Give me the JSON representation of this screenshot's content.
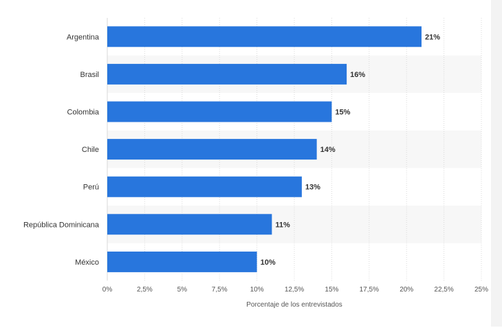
{
  "chart_data": {
    "type": "bar",
    "orientation": "horizontal",
    "categories": [
      "Argentina",
      "Brasil",
      "Colombia",
      "Chile",
      "Perú",
      "República Dominicana",
      "México"
    ],
    "values": [
      21,
      16,
      15,
      14,
      13,
      11,
      10
    ],
    "value_labels": [
      "21%",
      "16%",
      "15%",
      "14%",
      "13%",
      "11%",
      "10%"
    ],
    "xlabel": "Porcentaje de los entrevistados",
    "ylabel": "",
    "xlim": [
      0,
      25
    ],
    "xticks": [
      0,
      2.5,
      5,
      7.5,
      10,
      12.5,
      15,
      17.5,
      20,
      22.5,
      25
    ],
    "xtick_labels": [
      "0%",
      "2,5%",
      "5%",
      "7,5%",
      "10%",
      "12,5%",
      "15%",
      "17,5%",
      "20%",
      "22,5%",
      "25%"
    ],
    "grid": true,
    "legend": "none",
    "colors": {
      "bar": "#2876dd",
      "band": "#f7f7f7",
      "grid": "#d9d9d9",
      "text": "#333333",
      "tick_text": "#555555"
    }
  }
}
